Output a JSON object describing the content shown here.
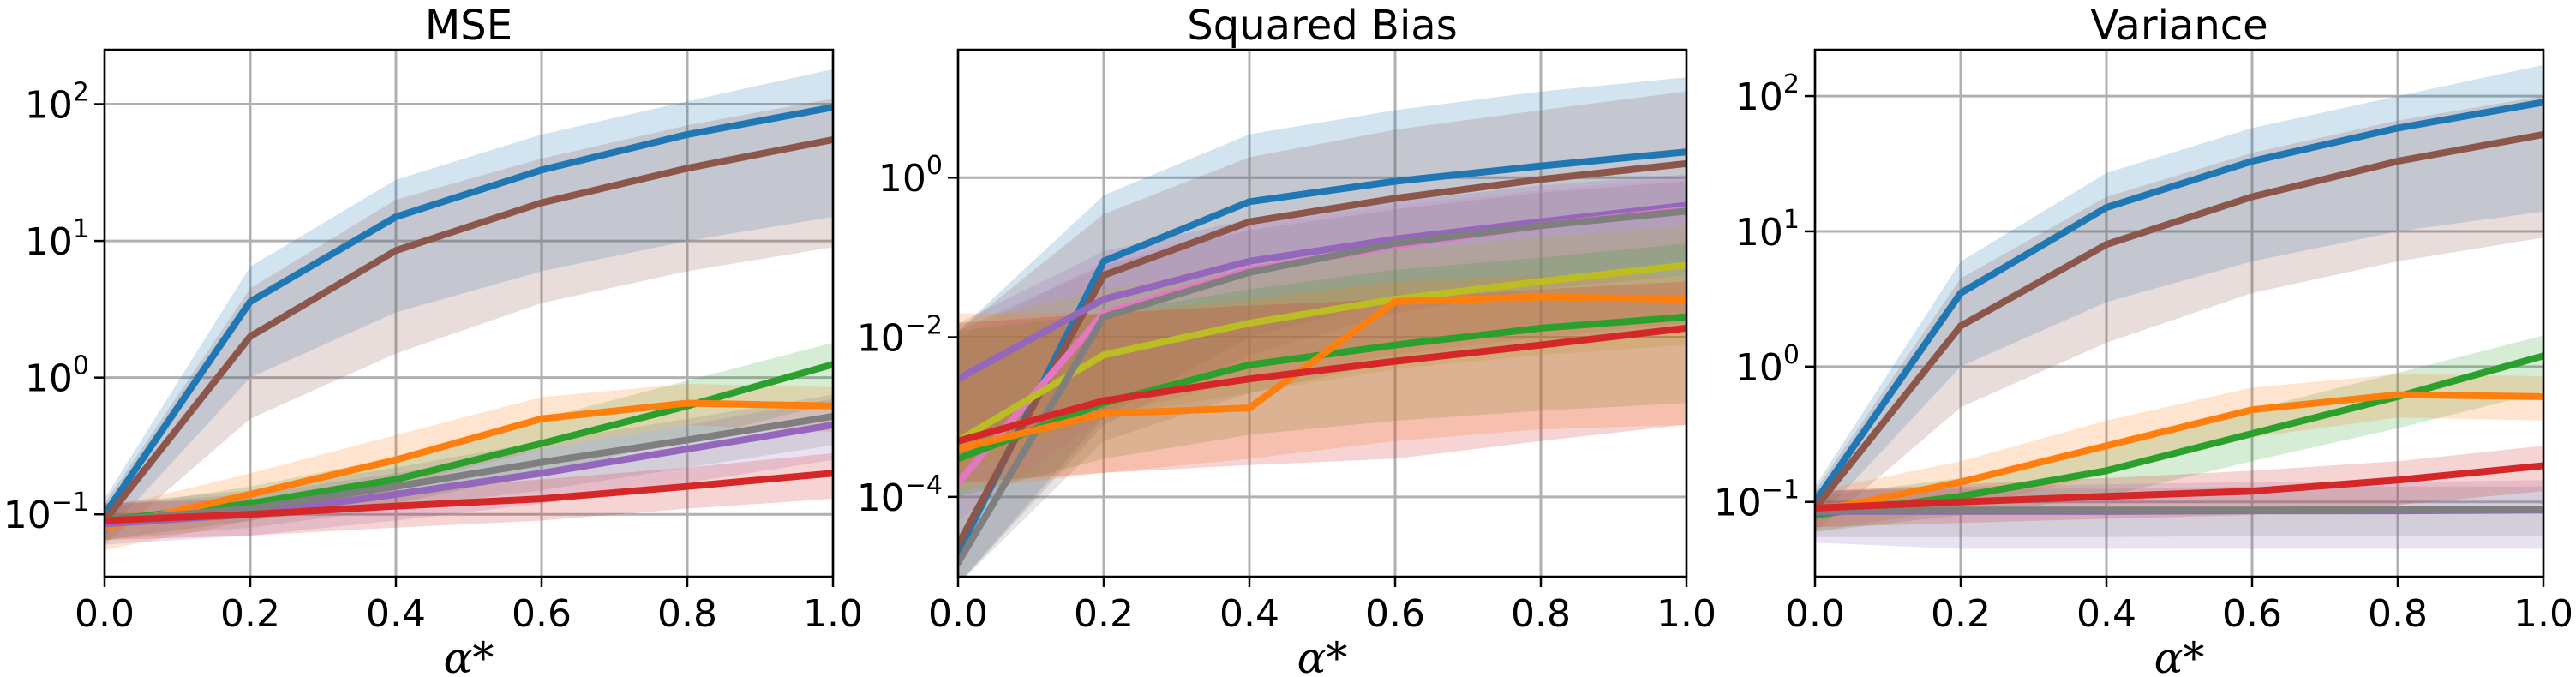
{
  "chart_data": [
    {
      "type": "line",
      "title": "MSE",
      "xlabel": "α*",
      "ylabel": "",
      "yscale": "log",
      "xlim": [
        0.0,
        1.0
      ],
      "ylim": [
        0.035,
        250
      ],
      "x": [
        0.0,
        0.2,
        0.4,
        0.6,
        0.8,
        1.0
      ],
      "xticks": [
        "0.0",
        "0.2",
        "0.4",
        "0.6",
        "0.8",
        "1.0"
      ],
      "yticks": [
        {
          "value": 0.1,
          "base": "10",
          "exp": "−1"
        },
        {
          "value": 1,
          "base": "10",
          "exp": "0"
        },
        {
          "value": 10,
          "base": "10",
          "exp": "1"
        },
        {
          "value": 100,
          "base": "10",
          "exp": "2"
        }
      ],
      "grid": true,
      "series": [
        {
          "name": "blue",
          "color": "#1f77b4",
          "values": [
            0.1,
            3.6,
            15,
            33,
            60,
            95
          ],
          "lower": [
            0.07,
            1.0,
            3.0,
            6.0,
            10.0,
            15.0
          ],
          "upper": [
            0.13,
            6.5,
            28,
            60,
            105,
            180
          ]
        },
        {
          "name": "brown",
          "color": "#8c564b",
          "values": [
            0.09,
            2.0,
            8.5,
            19,
            34,
            55
          ],
          "lower": [
            0.06,
            0.5,
            1.5,
            3.5,
            6.0,
            9.0
          ],
          "upper": [
            0.12,
            4.5,
            20,
            40,
            70,
            110
          ]
        },
        {
          "name": "green",
          "color": "#2ca02c",
          "values": [
            0.09,
            0.12,
            0.18,
            0.33,
            0.62,
            1.25
          ],
          "lower": [
            0.065,
            0.09,
            0.12,
            0.2,
            0.35,
            0.65
          ],
          "upper": [
            0.11,
            0.16,
            0.26,
            0.5,
            0.95,
            1.8
          ]
        },
        {
          "name": "orange",
          "color": "#ff7f0e",
          "values": [
            0.08,
            0.14,
            0.25,
            0.5,
            0.65,
            0.62
          ],
          "lower": [
            0.055,
            0.09,
            0.16,
            0.3,
            0.45,
            0.4
          ],
          "upper": [
            0.11,
            0.2,
            0.38,
            0.72,
            0.9,
            0.85
          ]
        },
        {
          "name": "purple",
          "color": "#9467bd",
          "values": [
            0.085,
            0.1,
            0.14,
            0.2,
            0.3,
            0.45
          ],
          "lower": [
            0.06,
            0.07,
            0.09,
            0.12,
            0.17,
            0.25
          ],
          "upper": [
            0.12,
            0.14,
            0.2,
            0.3,
            0.45,
            0.7
          ]
        },
        {
          "name": "gray",
          "color": "#7f7f7f",
          "values": [
            0.09,
            0.11,
            0.16,
            0.24,
            0.35,
            0.52
          ],
          "lower": [
            0.065,
            0.08,
            0.11,
            0.15,
            0.22,
            0.32
          ],
          "upper": [
            0.12,
            0.15,
            0.22,
            0.34,
            0.5,
            0.75
          ]
        },
        {
          "name": "red",
          "color": "#d62728",
          "values": [
            0.09,
            0.1,
            0.115,
            0.13,
            0.16,
            0.2
          ],
          "lower": [
            0.065,
            0.07,
            0.08,
            0.09,
            0.11,
            0.13
          ],
          "upper": [
            0.12,
            0.13,
            0.15,
            0.18,
            0.22,
            0.28
          ]
        }
      ]
    },
    {
      "type": "line",
      "title": "Squared Bias",
      "xlabel": "α*",
      "ylabel": "",
      "yscale": "log",
      "xlim": [
        0.0,
        1.0
      ],
      "ylim": [
        1e-05,
        40
      ],
      "x": [
        0.0,
        0.2,
        0.4,
        0.6,
        0.8,
        1.0
      ],
      "xticks": [
        "0.0",
        "0.2",
        "0.4",
        "0.6",
        "0.8",
        "1.0"
      ],
      "yticks": [
        {
          "value": 0.0001,
          "base": "10",
          "exp": "−4"
        },
        {
          "value": 0.01,
          "base": "10",
          "exp": "−2"
        },
        {
          "value": 1,
          "base": "10",
          "exp": "0"
        }
      ],
      "grid": true,
      "series": [
        {
          "name": "blue",
          "color": "#1f77b4",
          "values": [
            2e-05,
            0.09,
            0.5,
            0.9,
            1.4,
            2.1
          ],
          "lower": [
            8e-06,
            0.001,
            0.01,
            0.03,
            0.05,
            0.08
          ],
          "upper": [
            0.012,
            0.6,
            3.5,
            7,
            12,
            18
          ]
        },
        {
          "name": "brown",
          "color": "#8c564b",
          "values": [
            2.5e-05,
            0.06,
            0.28,
            0.55,
            0.95,
            1.5
          ],
          "lower": [
            8e-06,
            0.0008,
            0.006,
            0.02,
            0.04,
            0.06
          ],
          "upper": [
            0.012,
            0.35,
            1.8,
            4,
            7,
            12
          ]
        },
        {
          "name": "purple",
          "color": "#9467bd",
          "values": [
            0.003,
            0.03,
            0.09,
            0.17,
            0.28,
            0.45
          ],
          "lower": [
            0.0003,
            0.0015,
            0.004,
            0.008,
            0.012,
            0.02
          ],
          "upper": [
            0.015,
            0.12,
            0.3,
            0.5,
            0.8,
            1.1
          ]
        },
        {
          "name": "pink",
          "color": "#e377c2",
          "values": [
            0.00015,
            0.02,
            0.07,
            0.14,
            0.25,
            0.4
          ],
          "lower": [
            5e-05,
            0.001,
            0.003,
            0.006,
            0.01,
            0.015
          ],
          "upper": [
            0.01,
            0.09,
            0.25,
            0.45,
            0.7,
            1.0
          ]
        },
        {
          "name": "olive",
          "color": "#bcbd22",
          "values": [
            0.0005,
            0.006,
            0.015,
            0.03,
            0.05,
            0.08
          ],
          "lower": [
            0.0002,
            0.001,
            0.002,
            0.004,
            0.006,
            0.008
          ],
          "upper": [
            0.015,
            0.04,
            0.07,
            0.12,
            0.18,
            0.25
          ]
        },
        {
          "name": "gray",
          "color": "#7f7f7f",
          "values": [
            1.5e-05,
            0.018,
            0.065,
            0.15,
            0.25,
            0.38
          ],
          "lower": [
            8e-06,
            0.0005,
            0.002,
            0.005,
            0.008,
            0.012
          ],
          "upper": [
            0.012,
            0.08,
            0.22,
            0.4,
            0.65,
            0.9
          ]
        },
        {
          "name": "green",
          "color": "#2ca02c",
          "values": [
            0.0003,
            0.0015,
            0.0045,
            0.008,
            0.013,
            0.018
          ],
          "lower": [
            0.0001,
            0.0003,
            0.0006,
            0.0009,
            0.0012,
            0.0015
          ],
          "upper": [
            0.012,
            0.02,
            0.04,
            0.07,
            0.1,
            0.15
          ]
        },
        {
          "name": "orange",
          "color": "#ff7f0e",
          "values": [
            0.0004,
            0.0011,
            0.0013,
            0.028,
            0.032,
            0.03
          ],
          "lower": [
            0.00012,
            0.0002,
            0.0003,
            0.0005,
            0.0007,
            0.0008
          ],
          "upper": [
            0.02,
            0.02,
            0.03,
            0.05,
            0.06,
            0.06
          ]
        },
        {
          "name": "red",
          "color": "#d62728",
          "values": [
            0.0005,
            0.0016,
            0.003,
            0.005,
            0.008,
            0.013
          ],
          "lower": [
            0.00015,
            0.0002,
            0.00025,
            0.0003,
            0.0005,
            0.0008
          ],
          "upper": [
            0.015,
            0.02,
            0.025,
            0.03,
            0.04,
            0.05
          ]
        }
      ]
    },
    {
      "type": "line",
      "title": "Variance",
      "xlabel": "α*",
      "ylabel": "",
      "yscale": "log",
      "xlim": [
        0.0,
        1.0
      ],
      "ylim": [
        0.028,
        220
      ],
      "x": [
        0.0,
        0.2,
        0.4,
        0.6,
        0.8,
        1.0
      ],
      "xticks": [
        "0.0",
        "0.2",
        "0.4",
        "0.6",
        "0.8",
        "1.0"
      ],
      "yticks": [
        {
          "value": 0.1,
          "base": "10",
          "exp": "−1"
        },
        {
          "value": 1,
          "base": "10",
          "exp": "0"
        },
        {
          "value": 10,
          "base": "10",
          "exp": "1"
        },
        {
          "value": 100,
          "base": "10",
          "exp": "2"
        }
      ],
      "grid": true,
      "series": [
        {
          "name": "blue",
          "color": "#1f77b4",
          "values": [
            0.1,
            3.5,
            15,
            33,
            58,
            90
          ],
          "lower": [
            0.07,
            1.0,
            3.0,
            6.0,
            10.0,
            14.0
          ],
          "upper": [
            0.13,
            6.0,
            27,
            58,
            100,
            170
          ]
        },
        {
          "name": "brown",
          "color": "#8c564b",
          "values": [
            0.09,
            2.0,
            8.0,
            18,
            33,
            52
          ],
          "lower": [
            0.06,
            0.5,
            1.5,
            3.5,
            6.0,
            9.0
          ],
          "upper": [
            0.12,
            4.5,
            18,
            38,
            66,
            100
          ]
        },
        {
          "name": "green",
          "color": "#2ca02c",
          "values": [
            0.08,
            0.11,
            0.17,
            0.32,
            0.6,
            1.2
          ],
          "lower": [
            0.06,
            0.08,
            0.11,
            0.2,
            0.35,
            0.65
          ],
          "upper": [
            0.11,
            0.15,
            0.25,
            0.48,
            0.9,
            1.7
          ]
        },
        {
          "name": "orange",
          "color": "#ff7f0e",
          "values": [
            0.085,
            0.14,
            0.26,
            0.48,
            0.62,
            0.6
          ],
          "lower": [
            0.06,
            0.09,
            0.16,
            0.3,
            0.42,
            0.4
          ],
          "upper": [
            0.12,
            0.2,
            0.4,
            0.7,
            0.88,
            0.85
          ]
        },
        {
          "name": "purple",
          "color": "#9467bd",
          "values": [
            0.085,
            0.085,
            0.085,
            0.086,
            0.086,
            0.087
          ],
          "lower": [
            0.05,
            0.045,
            0.045,
            0.045,
            0.045,
            0.045
          ],
          "upper": [
            0.12,
            0.13,
            0.135,
            0.14,
            0.14,
            0.145
          ]
        },
        {
          "name": "gray",
          "color": "#7f7f7f",
          "values": [
            0.086,
            0.087,
            0.087,
            0.087,
            0.088,
            0.088
          ],
          "lower": [
            0.055,
            0.055,
            0.055,
            0.056,
            0.056,
            0.056
          ],
          "upper": [
            0.12,
            0.125,
            0.125,
            0.13,
            0.13,
            0.13
          ]
        },
        {
          "name": "red",
          "color": "#d62728",
          "values": [
            0.09,
            0.1,
            0.11,
            0.12,
            0.145,
            0.185
          ],
          "lower": [
            0.065,
            0.07,
            0.075,
            0.08,
            0.095,
            0.12
          ],
          "upper": [
            0.12,
            0.135,
            0.15,
            0.17,
            0.2,
            0.26
          ]
        }
      ]
    }
  ]
}
